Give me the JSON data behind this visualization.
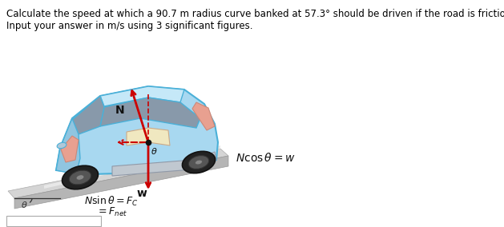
{
  "title_line1": "Calculate the speed at which a 90.7 m radius curve banked at 57.3° should be driven if the road is frictionless.",
  "title_line2": "Input your answer in m/s using 3 significant figures.",
  "bg_color": "#ffffff",
  "text_color": "#000000",
  "car_blue": "#a8d8f0",
  "car_blue_edge": "#4ab0d8",
  "car_gray": "#c8c8c8",
  "car_gray_edge": "#999999",
  "salmon": "#e8a090",
  "cream": "#f0e8c0",
  "road_top": "#d8d8d8",
  "road_side": "#b8b8b8",
  "arrow_red": "#cc0000",
  "arrow_red_dashed": "#cc0000",
  "wheel_dark": "#222222",
  "wheel_gray": "#555555"
}
